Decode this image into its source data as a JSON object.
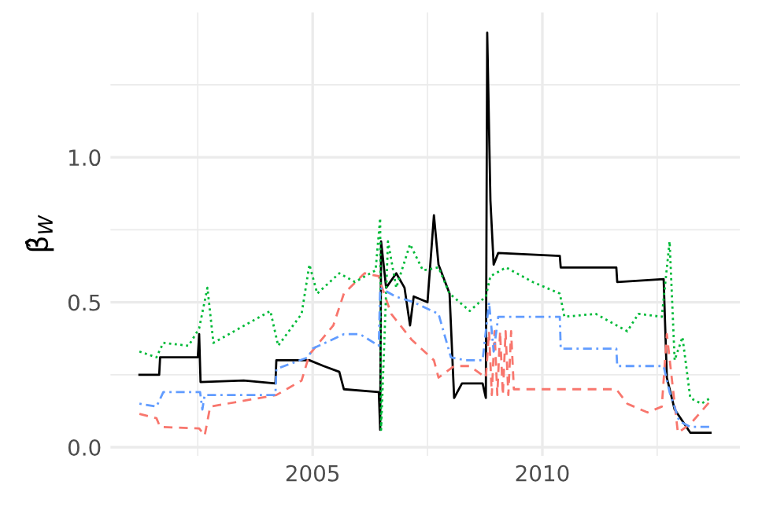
{
  "chart_data": {
    "type": "line",
    "ylabel": "β̂$_{W}$",
    "xlim": [
      2000.6,
      2014.3
    ],
    "xticks": [
      2005,
      2010
    ],
    "ylim": [
      -0.03,
      1.5
    ],
    "yticks": [
      {
        "value": 0,
        "label": "0.0"
      },
      {
        "value": 0.5,
        "label": "0.5"
      },
      {
        "value": 1,
        "label": "1.0"
      }
    ],
    "grid": true,
    "legend": false,
    "series": [
      {
        "color": "#000000",
        "line_style": "solid",
        "x": [
          2001.23,
          2001.66,
          2001.68,
          2002.5,
          2002.53,
          2002.56,
          2003.5,
          2004.19,
          2004.21,
          2004.93,
          2005.24,
          2005.58,
          2005.68,
          2006.44,
          2006.45,
          2006.47,
          2006.49,
          2006.6,
          2006.82,
          2007.0,
          2007.12,
          2007.2,
          2007.5,
          2007.64,
          2007.74,
          2007.98,
          2008.08,
          2008.25,
          2008.7,
          2008.77,
          2008.8,
          2008.87,
          2008.94,
          2009.04,
          2010.38,
          2010.4,
          2011.61,
          2011.63,
          2012.64,
          2012.71,
          2012.88,
          2013.05,
          2013.22,
          2013.66
        ],
        "values": [
          0.25,
          0.25,
          0.31,
          0.31,
          0.39,
          0.225,
          0.23,
          0.22,
          0.3,
          0.3,
          0.28,
          0.26,
          0.2,
          0.19,
          0.15,
          0.06,
          0.71,
          0.55,
          0.6,
          0.55,
          0.42,
          0.52,
          0.5,
          0.8,
          0.63,
          0.53,
          0.17,
          0.22,
          0.22,
          0.17,
          1.43,
          0.85,
          0.63,
          0.67,
          0.66,
          0.62,
          0.62,
          0.57,
          0.58,
          0.24,
          0.13,
          0.09,
          0.05,
          0.05
        ]
      },
      {
        "color": "#f8766d",
        "line_style": "dashed",
        "x": [
          2001.23,
          2001.6,
          2001.68,
          2002.53,
          2002.65,
          2002.77,
          2004.21,
          2004.76,
          2004.93,
          2005.45,
          2005.68,
          2006.13,
          2006.44,
          2006.47,
          2006.71,
          2007.16,
          2007.64,
          2007.74,
          2008.08,
          2008.42,
          2008.77,
          2008.84,
          2008.9,
          2008.96,
          2009.02,
          2009.08,
          2009.14,
          2009.2,
          2009.26,
          2009.32,
          2009.38,
          2009.45,
          2011.61,
          2011.85,
          2012.29,
          2012.6,
          2012.71,
          2012.95,
          2013.22,
          2013.66
        ],
        "values": [
          0.115,
          0.1,
          0.07,
          0.065,
          0.04,
          0.14,
          0.18,
          0.23,
          0.32,
          0.42,
          0.53,
          0.6,
          0.59,
          0.57,
          0.46,
          0.37,
          0.3,
          0.24,
          0.28,
          0.28,
          0.24,
          0.4,
          0.18,
          0.4,
          0.18,
          0.4,
          0.18,
          0.4,
          0.18,
          0.4,
          0.2,
          0.2,
          0.2,
          0.15,
          0.12,
          0.14,
          0.39,
          0.05,
          0.08,
          0.16
        ]
      },
      {
        "color": "#00ba38",
        "line_style": "dotted",
        "x": [
          2001.23,
          2001.6,
          2001.75,
          2002.3,
          2002.53,
          2002.71,
          2002.84,
          2004.08,
          2004.25,
          2004.76,
          2004.93,
          2005.1,
          2005.58,
          2005.92,
          2006.37,
          2006.47,
          2006.49,
          2006.64,
          2006.82,
          2007.12,
          2007.4,
          2007.74,
          2007.98,
          2008.42,
          2008.77,
          2008.87,
          2009.21,
          2009.79,
          2010.38,
          2010.48,
          2011.16,
          2011.85,
          2012.09,
          2012.6,
          2012.77,
          2012.88,
          2013.05,
          2013.22,
          2013.46,
          2013.66
        ],
        "values": [
          0.33,
          0.31,
          0.36,
          0.35,
          0.41,
          0.55,
          0.36,
          0.47,
          0.35,
          0.46,
          0.63,
          0.53,
          0.6,
          0.57,
          0.61,
          0.79,
          0.06,
          0.71,
          0.55,
          0.7,
          0.61,
          0.62,
          0.53,
          0.47,
          0.52,
          0.59,
          0.62,
          0.57,
          0.53,
          0.45,
          0.46,
          0.4,
          0.46,
          0.45,
          0.71,
          0.3,
          0.38,
          0.17,
          0.15,
          0.17
        ]
      },
      {
        "color": "#619cff",
        "line_style": "dashdot",
        "x": [
          2001.23,
          2001.6,
          2001.75,
          2002.55,
          2002.6,
          2002.65,
          2004.19,
          2004.21,
          2004.9,
          2005.0,
          2005.68,
          2006.03,
          2006.44,
          2006.47,
          2006.8,
          2007.2,
          2007.74,
          2008.01,
          2008.32,
          2008.7,
          2008.84,
          2008.94,
          2009.04,
          2010.38,
          2010.4,
          2011.61,
          2011.63,
          2012.64,
          2012.77,
          2012.98,
          2013.22,
          2013.66
        ],
        "values": [
          0.15,
          0.14,
          0.19,
          0.19,
          0.13,
          0.18,
          0.18,
          0.27,
          0.31,
          0.34,
          0.39,
          0.39,
          0.35,
          0.55,
          0.52,
          0.5,
          0.46,
          0.31,
          0.3,
          0.3,
          0.5,
          0.33,
          0.45,
          0.45,
          0.34,
          0.34,
          0.28,
          0.28,
          0.19,
          0.09,
          0.07,
          0.07
        ]
      }
    ]
  }
}
